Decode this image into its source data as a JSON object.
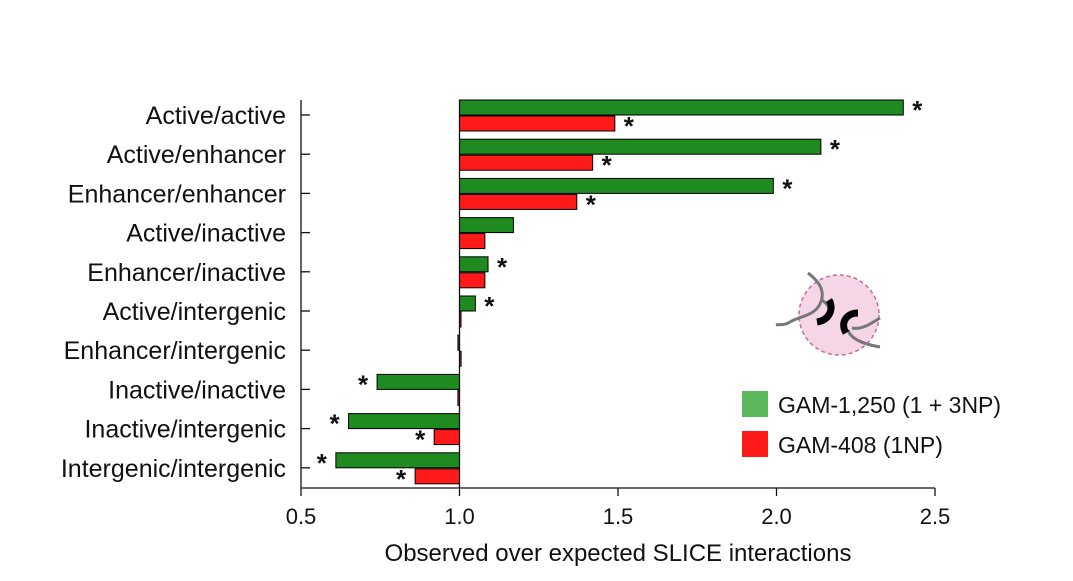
{
  "chart_data": {
    "type": "bar",
    "orientation": "horizontal",
    "baseline": 1.0,
    "xlabel": "Observed over expected SLICE interactions",
    "xlim": [
      0.5,
      2.5
    ],
    "xticks": [
      0.5,
      1.0,
      1.5,
      2.0,
      2.5
    ],
    "xtick_labels": [
      "0.5",
      "1.0",
      "1.5",
      "2.0",
      "2.5"
    ],
    "categories": [
      "Active/active",
      "Active/enhancer",
      "Enhancer/enhancer",
      "Active/inactive",
      "Enhancer/inactive",
      "Active/intergenic",
      "Enhancer/intergenic",
      "Inactive/inactive",
      "Inactive/intergenic",
      "Intergenic/intergenic"
    ],
    "series": [
      {
        "name": "GAM-1,250 (1 + 3NP)",
        "color": "#1f8a1f",
        "legend_color": "#5cb85c",
        "values": [
          2.4,
          2.14,
          1.99,
          1.17,
          1.09,
          1.05,
          0.995,
          0.74,
          0.65,
          0.61
        ],
        "significant": [
          true,
          true,
          true,
          false,
          true,
          true,
          false,
          true,
          true,
          true
        ]
      },
      {
        "name": "GAM-408 (1NP)",
        "color": "#ff1a1a",
        "legend_color": "#ff1a1a",
        "values": [
          1.49,
          1.42,
          1.37,
          1.08,
          1.08,
          1.0,
          1.005,
          0.995,
          0.92,
          0.86
        ],
        "significant": [
          true,
          true,
          true,
          false,
          false,
          false,
          false,
          false,
          true,
          true
        ]
      }
    ],
    "significance_marker": "*",
    "legend_position": "bottom-right"
  }
}
